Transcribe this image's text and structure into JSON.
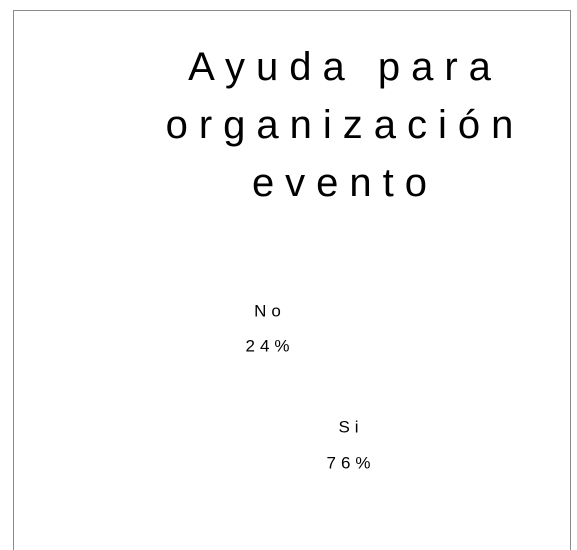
{
  "chart_data": {
    "type": "pie",
    "title": "Ayuda para organización evento",
    "categories": [
      "No",
      "Si"
    ],
    "values": [
      24,
      76
    ],
    "value_labels": [
      "24%",
      "76%"
    ],
    "colors": [
      "#ffffff",
      "#ffffff"
    ]
  }
}
